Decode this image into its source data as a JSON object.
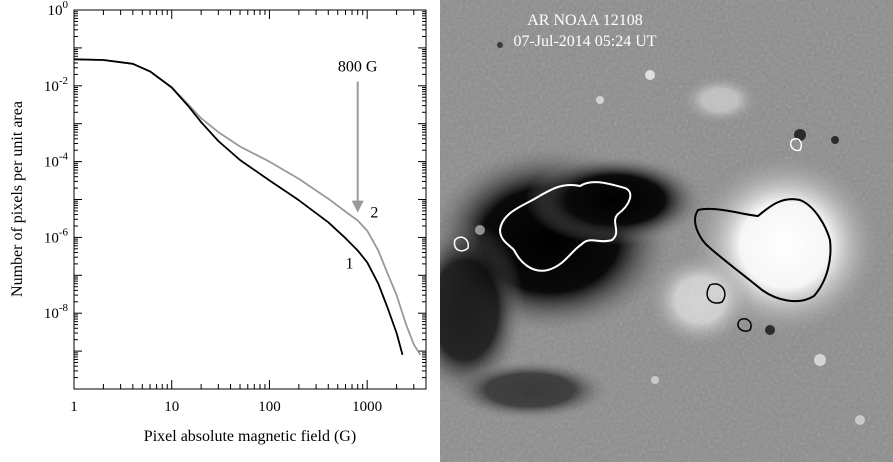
{
  "chart_data": {
    "type": "line",
    "xlabel": "Pixel absolute magnetic field (G)",
    "ylabel": "Number of pixels per unit area",
    "xscale": "log",
    "yscale": "log",
    "xlim": [
      1,
      4000
    ],
    "ylim": [
      1e-10,
      1
    ],
    "xticks": [
      {
        "value": 1,
        "label": "1"
      },
      {
        "value": 10,
        "label": "10"
      },
      {
        "value": 100,
        "label": "100"
      },
      {
        "value": 1000,
        "label": "1000"
      }
    ],
    "yticks": [
      {
        "value": 1,
        "base": "10",
        "exp": "0"
      },
      {
        "value": 0.01,
        "base": "10",
        "exp": "-2"
      },
      {
        "value": 0.0001,
        "base": "10",
        "exp": "-4"
      },
      {
        "value": 1e-06,
        "base": "10",
        "exp": "-6"
      },
      {
        "value": 1e-08,
        "base": "10",
        "exp": "-8"
      }
    ],
    "series": [
      {
        "name": "1",
        "color": "#000000",
        "points": [
          [
            1,
            0.05
          ],
          [
            2,
            0.048
          ],
          [
            4,
            0.038
          ],
          [
            6,
            0.024
          ],
          [
            10,
            0.009
          ],
          [
            15,
            0.0028
          ],
          [
            20,
            0.0011
          ],
          [
            30,
            0.00035
          ],
          [
            50,
            0.00011
          ],
          [
            100,
            3.2e-05
          ],
          [
            200,
            9.5e-06
          ],
          [
            400,
            2.5e-06
          ],
          [
            600,
            9.5e-07
          ],
          [
            800,
            4.5e-07
          ],
          [
            1000,
            2.2e-07
          ],
          [
            1300,
            6e-08
          ],
          [
            1600,
            1.5e-08
          ],
          [
            2000,
            3e-09
          ],
          [
            2300,
            8e-10
          ]
        ]
      },
      {
        "name": "2",
        "color": "#999999",
        "points": [
          [
            1,
            0.05
          ],
          [
            2,
            0.048
          ],
          [
            4,
            0.038
          ],
          [
            6,
            0.024
          ],
          [
            10,
            0.0092
          ],
          [
            15,
            0.0031
          ],
          [
            20,
            0.0014
          ],
          [
            30,
            0.0006
          ],
          [
            50,
            0.00025
          ],
          [
            100,
            0.0001
          ],
          [
            200,
            3.5e-05
          ],
          [
            400,
            1.05e-05
          ],
          [
            600,
            4.8e-06
          ],
          [
            800,
            2.8e-06
          ],
          [
            1000,
            1.5e-06
          ],
          [
            1300,
            4.5e-07
          ],
          [
            1600,
            1.2e-07
          ],
          [
            2000,
            3e-08
          ],
          [
            2500,
            5e-09
          ],
          [
            3000,
            1.5e-09
          ],
          [
            3500,
            8e-10
          ]
        ]
      }
    ],
    "series_labels": [
      {
        "text": "1",
        "x": 600,
        "y": 1.5e-07
      },
      {
        "text": "2",
        "x": 1080,
        "y": 3.3e-06
      }
    ],
    "annotation": {
      "text": "800 G",
      "x": 800,
      "arrow_from_y": 0.013,
      "arrow_to_y": 4.5e-06,
      "color": "#999999"
    },
    "grid": false
  },
  "image_panel": {
    "title_line1": "AR NOAA 12108",
    "title_line2": "07-Jul-2014 05:24 UT",
    "background_color": "#8c8c8c",
    "title_color": "#ffffff"
  }
}
